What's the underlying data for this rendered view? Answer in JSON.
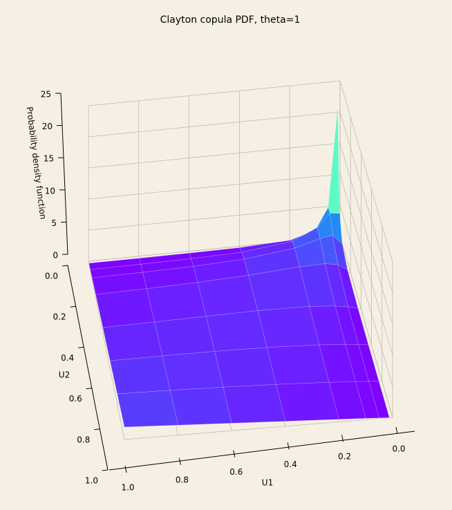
{
  "chart_data": {
    "type": "surface",
    "title": "Clayton copula PDF, theta=1",
    "xlabel": "U1",
    "ylabel": "U2",
    "zlabel": "Probability density function",
    "colormap": "rainbow",
    "grid": true,
    "x": [
      0.012,
      0.05,
      0.1,
      0.2,
      0.4,
      0.6,
      0.8,
      1.0
    ],
    "y": [
      0.012,
      0.05,
      0.1,
      0.2,
      0.4,
      0.6,
      0.8,
      1.0
    ],
    "z": [
      [
        21.2,
        5.18,
        1.76,
        0.52,
        0.142,
        0.065,
        0.037,
        0.024
      ],
      [
        5.18,
        5.39,
        3.28,
        1.45,
        0.5,
        0.252,
        0.151,
        0.1
      ],
      [
        1.76,
        3.28,
        2.92,
        1.82,
        0.82,
        0.458,
        0.29,
        0.2
      ],
      [
        0.52,
        1.45,
        1.82,
        1.71,
        1.14,
        0.763,
        0.54,
        0.4
      ],
      [
        0.142,
        0.5,
        0.82,
        1.14,
        1.22,
        1.09,
        0.94,
        0.8
      ],
      [
        0.065,
        0.252,
        0.458,
        0.763,
        1.09,
        1.21,
        1.23,
        1.2
      ],
      [
        0.037,
        0.151,
        0.29,
        0.54,
        0.94,
        1.23,
        1.45,
        1.6
      ],
      [
        0.024,
        0.1,
        0.2,
        0.4,
        0.8,
        1.2,
        1.6,
        2.0
      ]
    ],
    "xlim": [
      0,
      1
    ],
    "ylim": [
      0,
      1
    ],
    "zlim": [
      0,
      25
    ],
    "xticks": [
      {
        "value": 0,
        "label": "0.0"
      },
      {
        "value": 0.2,
        "label": "0.2"
      },
      {
        "value": 0.4,
        "label": "0.4"
      },
      {
        "value": 0.6,
        "label": "0.6"
      },
      {
        "value": 0.8,
        "label": "0.8"
      },
      {
        "value": 1,
        "label": "1.0"
      }
    ],
    "yticks": [
      {
        "value": 0,
        "label": "0.0"
      },
      {
        "value": 0.2,
        "label": "0.2"
      },
      {
        "value": 0.4,
        "label": "0.4"
      },
      {
        "value": 0.6,
        "label": "0.6"
      },
      {
        "value": 0.8,
        "label": "0.8"
      },
      {
        "value": 1,
        "label": "1.0"
      }
    ],
    "zticks": [
      0,
      5,
      10,
      15,
      20,
      25
    ]
  }
}
